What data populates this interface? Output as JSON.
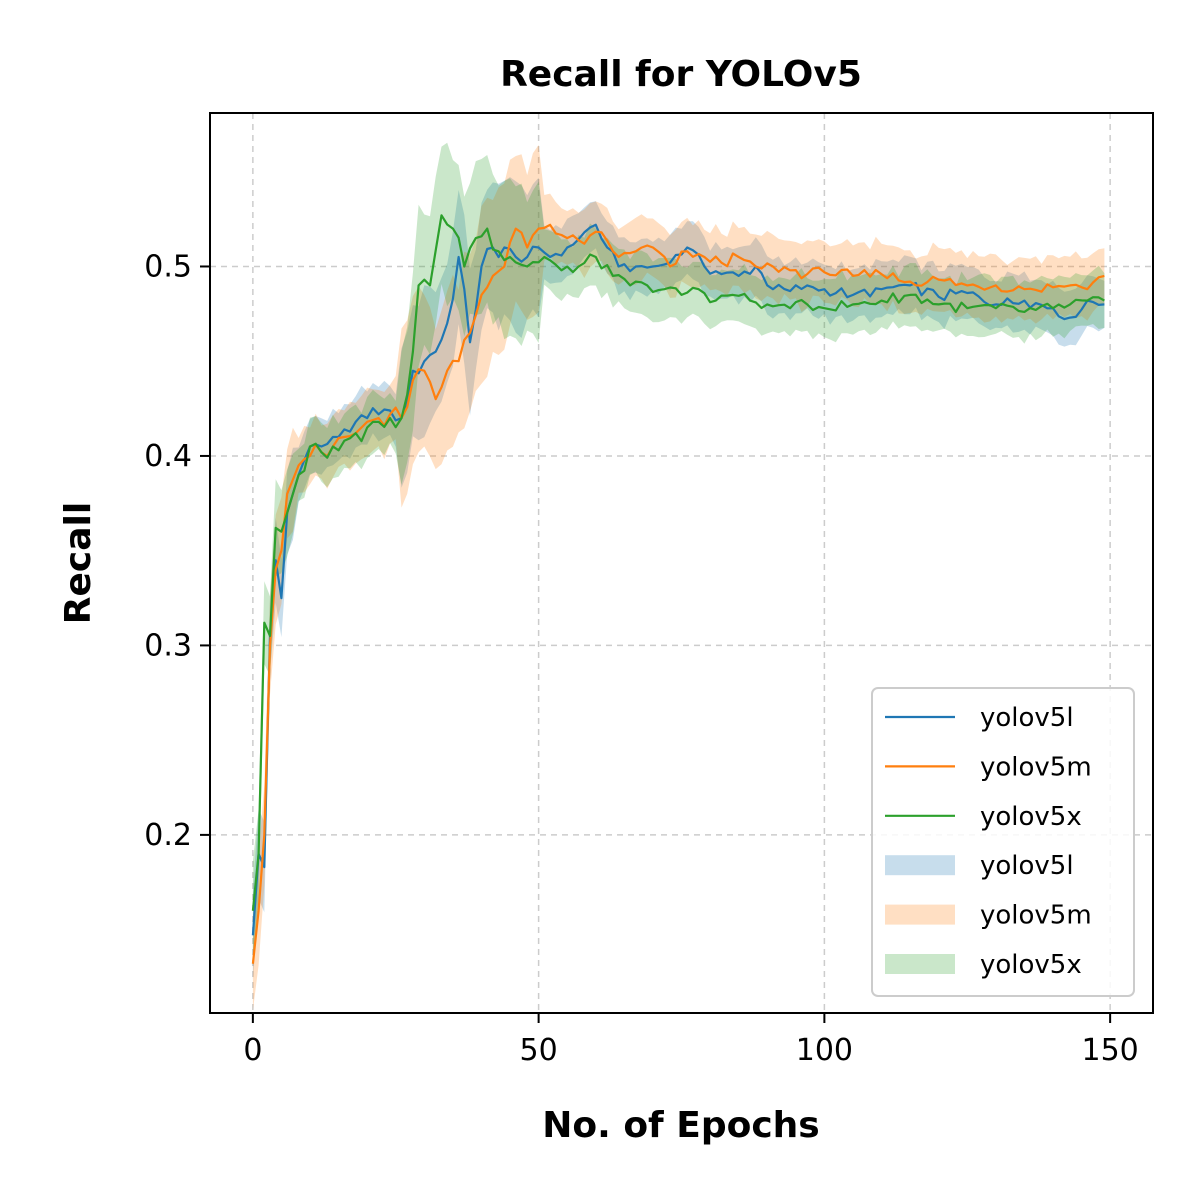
{
  "chart_data": {
    "type": "line",
    "title": "Recall for YOLOv5",
    "xlabel": "No. of Epochs",
    "ylabel": "Recall",
    "xlim": [
      -7.5,
      157.5
    ],
    "ylim": [
      0.106,
      0.581
    ],
    "xticks": [
      0,
      50,
      100,
      150
    ],
    "yticks": [
      0.2,
      0.3,
      0.4,
      0.5
    ],
    "xtick_labels": [
      "0",
      "50",
      "100",
      "150"
    ],
    "ytick_labels": [
      "0.2",
      "0.3",
      "0.4",
      "0.5"
    ],
    "grid": true,
    "legend_position": "lower-right",
    "legend": [
      "yolov5l",
      "yolov5m",
      "yolov5x",
      "yolov5l",
      "yolov5m",
      "yolov5x"
    ],
    "series": [
      {
        "name": "yolov5l",
        "color": "#1f77b4",
        "anchors": [
          [
            0,
            0.147
          ],
          [
            1,
            0.19
          ],
          [
            2,
            0.183
          ],
          [
            3,
            0.305
          ],
          [
            4,
            0.345
          ],
          [
            5,
            0.325
          ],
          [
            6,
            0.37
          ],
          [
            8,
            0.39
          ],
          [
            10,
            0.405
          ],
          [
            12,
            0.405
          ],
          [
            14,
            0.41
          ],
          [
            16,
            0.414
          ],
          [
            18,
            0.418
          ],
          [
            20,
            0.42
          ],
          [
            22,
            0.422
          ],
          [
            24,
            0.424
          ],
          [
            26,
            0.42
          ],
          [
            28,
            0.445
          ],
          [
            30,
            0.45
          ],
          [
            32,
            0.455
          ],
          [
            34,
            0.47
          ],
          [
            36,
            0.505
          ],
          [
            38,
            0.46
          ],
          [
            40,
            0.5
          ],
          [
            42,
            0.51
          ],
          [
            44,
            0.51
          ],
          [
            46,
            0.505
          ],
          [
            48,
            0.505
          ],
          [
            50,
            0.51
          ],
          [
            52,
            0.505
          ],
          [
            55,
            0.51
          ],
          [
            58,
            0.518
          ],
          [
            60,
            0.522
          ],
          [
            62,
            0.51
          ],
          [
            64,
            0.5
          ],
          [
            67,
            0.5
          ],
          [
            70,
            0.5
          ],
          [
            73,
            0.502
          ],
          [
            76,
            0.51
          ],
          [
            79,
            0.5
          ],
          [
            82,
            0.496
          ],
          [
            85,
            0.495
          ],
          [
            88,
            0.5
          ],
          [
            91,
            0.488
          ],
          [
            94,
            0.487
          ],
          [
            97,
            0.49
          ],
          [
            100,
            0.488
          ],
          [
            105,
            0.485
          ],
          [
            110,
            0.488
          ],
          [
            115,
            0.49
          ],
          [
            120,
            0.484
          ],
          [
            125,
            0.486
          ],
          [
            130,
            0.48
          ],
          [
            135,
            0.482
          ],
          [
            140,
            0.478
          ],
          [
            143,
            0.473
          ],
          [
            146,
            0.482
          ],
          [
            149,
            0.48
          ]
        ]
      },
      {
        "name": "yolov5m",
        "color": "#ff7f0e",
        "anchors": [
          [
            0,
            0.132
          ],
          [
            1,
            0.16
          ],
          [
            2,
            0.2
          ],
          [
            3,
            0.3
          ],
          [
            4,
            0.34
          ],
          [
            5,
            0.35
          ],
          [
            6,
            0.38
          ],
          [
            8,
            0.395
          ],
          [
            10,
            0.4
          ],
          [
            12,
            0.402
          ],
          [
            14,
            0.405
          ],
          [
            16,
            0.41
          ],
          [
            18,
            0.412
          ],
          [
            20,
            0.418
          ],
          [
            22,
            0.42
          ],
          [
            24,
            0.422
          ],
          [
            26,
            0.42
          ],
          [
            28,
            0.44
          ],
          [
            30,
            0.445
          ],
          [
            32,
            0.43
          ],
          [
            34,
            0.445
          ],
          [
            36,
            0.45
          ],
          [
            38,
            0.465
          ],
          [
            40,
            0.485
          ],
          [
            42,
            0.495
          ],
          [
            44,
            0.5
          ],
          [
            46,
            0.52
          ],
          [
            48,
            0.51
          ],
          [
            50,
            0.52
          ],
          [
            52,
            0.522
          ],
          [
            55,
            0.515
          ],
          [
            58,
            0.512
          ],
          [
            61,
            0.518
          ],
          [
            64,
            0.505
          ],
          [
            67,
            0.508
          ],
          [
            70,
            0.51
          ],
          [
            73,
            0.5
          ],
          [
            76,
            0.508
          ],
          [
            79,
            0.505
          ],
          [
            82,
            0.502
          ],
          [
            85,
            0.505
          ],
          [
            88,
            0.5
          ],
          [
            91,
            0.5
          ],
          [
            94,
            0.498
          ],
          [
            97,
            0.496
          ],
          [
            100,
            0.497
          ],
          [
            105,
            0.495
          ],
          [
            110,
            0.496
          ],
          [
            115,
            0.492
          ],
          [
            120,
            0.493
          ],
          [
            125,
            0.49
          ],
          [
            130,
            0.49
          ],
          [
            135,
            0.488
          ],
          [
            140,
            0.489
          ],
          [
            143,
            0.49
          ],
          [
            146,
            0.488
          ],
          [
            149,
            0.495
          ]
        ]
      },
      {
        "name": "yolov5x",
        "color": "#2ca02c",
        "anchors": [
          [
            0,
            0.16
          ],
          [
            1,
            0.19
          ],
          [
            2,
            0.312
          ],
          [
            3,
            0.305
          ],
          [
            4,
            0.362
          ],
          [
            5,
            0.36
          ],
          [
            6,
            0.37
          ],
          [
            8,
            0.39
          ],
          [
            10,
            0.405
          ],
          [
            12,
            0.402
          ],
          [
            14,
            0.405
          ],
          [
            16,
            0.408
          ],
          [
            18,
            0.412
          ],
          [
            20,
            0.415
          ],
          [
            22,
            0.418
          ],
          [
            24,
            0.42
          ],
          [
            26,
            0.42
          ],
          [
            28,
            0.455
          ],
          [
            29,
            0.49
          ],
          [
            31,
            0.49
          ],
          [
            33,
            0.527
          ],
          [
            35,
            0.52
          ],
          [
            37,
            0.5
          ],
          [
            39,
            0.515
          ],
          [
            41,
            0.52
          ],
          [
            43,
            0.508
          ],
          [
            45,
            0.505
          ],
          [
            48,
            0.5
          ],
          [
            51,
            0.505
          ],
          [
            54,
            0.498
          ],
          [
            57,
            0.5
          ],
          [
            60,
            0.505
          ],
          [
            63,
            0.495
          ],
          [
            66,
            0.49
          ],
          [
            69,
            0.49
          ],
          [
            72,
            0.488
          ],
          [
            75,
            0.485
          ],
          [
            78,
            0.488
          ],
          [
            81,
            0.482
          ],
          [
            84,
            0.485
          ],
          [
            87,
            0.482
          ],
          [
            90,
            0.48
          ],
          [
            94,
            0.478
          ],
          [
            97,
            0.48
          ],
          [
            100,
            0.478
          ],
          [
            105,
            0.48
          ],
          [
            110,
            0.482
          ],
          [
            115,
            0.485
          ],
          [
            120,
            0.48
          ],
          [
            125,
            0.478
          ],
          [
            130,
            0.478
          ],
          [
            135,
            0.476
          ],
          [
            140,
            0.478
          ],
          [
            143,
            0.48
          ],
          [
            146,
            0.482
          ],
          [
            149,
            0.482
          ]
        ]
      }
    ],
    "bands": [
      {
        "name": "yolov5l",
        "color": "#1f77b4",
        "opacity": 0.25,
        "series_index": 0,
        "half_width": 0.012
      },
      {
        "name": "yolov5m",
        "color": "#ff7f0e",
        "opacity": 0.25,
        "series_index": 1,
        "half_width": 0.014
      },
      {
        "name": "yolov5x",
        "color": "#2ca02c",
        "opacity": 0.25,
        "series_index": 2,
        "half_width": 0.013
      }
    ]
  }
}
